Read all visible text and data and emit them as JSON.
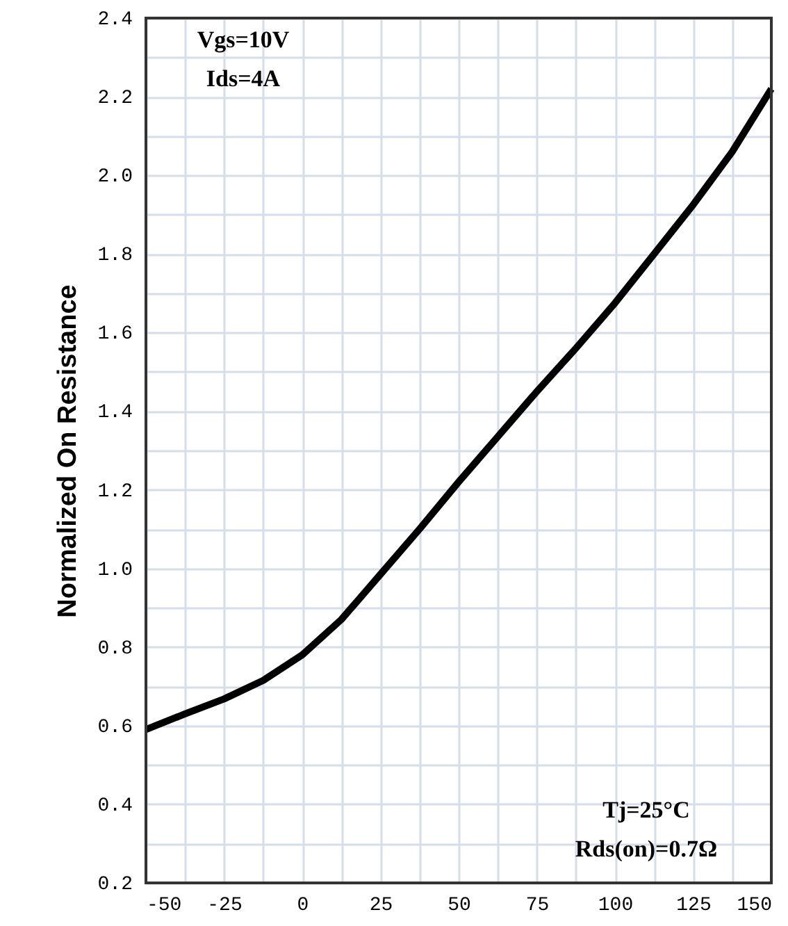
{
  "chart_data": {
    "type": "line",
    "ylabel": "Normalized On Resistance",
    "x": [
      -50,
      -37.5,
      -25,
      -12.5,
      0,
      12.5,
      25,
      37.5,
      50,
      62.5,
      75,
      87.5,
      100,
      112.5,
      125,
      137.5,
      150
    ],
    "series": [
      {
        "color": "#000000",
        "values": [
          0.59,
          0.63,
          0.668,
          0.715,
          0.78,
          0.87,
          0.985,
          1.1,
          1.22,
          1.335,
          1.45,
          1.56,
          1.675,
          1.8,
          1.925,
          2.06,
          2.22
        ]
      }
    ],
    "xlim": [
      -50,
      150
    ],
    "xticks": [
      -50,
      {
        "value": -37.5,
        "label": null
      },
      -25,
      {
        "value": -12.5,
        "label": null
      },
      0,
      {
        "value": 12.5,
        "label": null
      },
      25,
      {
        "value": 37.5,
        "label": null
      },
      50,
      {
        "value": 62.5,
        "label": null
      },
      75,
      {
        "value": 87.5,
        "label": null
      },
      100,
      {
        "value": 112.5,
        "label": null
      },
      125,
      {
        "value": 137.5,
        "label": null
      },
      150
    ],
    "ylim": [
      0.2,
      2.4
    ],
    "yticks": [
      0.2,
      {
        "value": 0.3,
        "label": null
      },
      0.4,
      {
        "value": 0.5,
        "label": null
      },
      0.6,
      {
        "value": 0.7,
        "label": null
      },
      0.8,
      {
        "value": 0.9,
        "label": null
      },
      {
        "value": 1.0,
        "label": "1.0"
      },
      {
        "value": 1.1,
        "label": null
      },
      1.2,
      {
        "value": 1.3,
        "label": null
      },
      1.4,
      {
        "value": 1.5,
        "label": null
      },
      1.6,
      {
        "value": 1.7,
        "label": null
      },
      1.8,
      {
        "value": 1.9,
        "label": null
      },
      {
        "value": 2.0,
        "label": "2.0"
      },
      {
        "value": 2.1,
        "label": null
      },
      2.2,
      {
        "value": 2.3,
        "label": null
      },
      2.4
    ],
    "grid": true,
    "marker": "none",
    "line_style": "solid",
    "annotations": [
      "Vgs=10V",
      "Ids=4A",
      "Tj=25°C",
      "Rds(on)=0.7Ω"
    ]
  }
}
